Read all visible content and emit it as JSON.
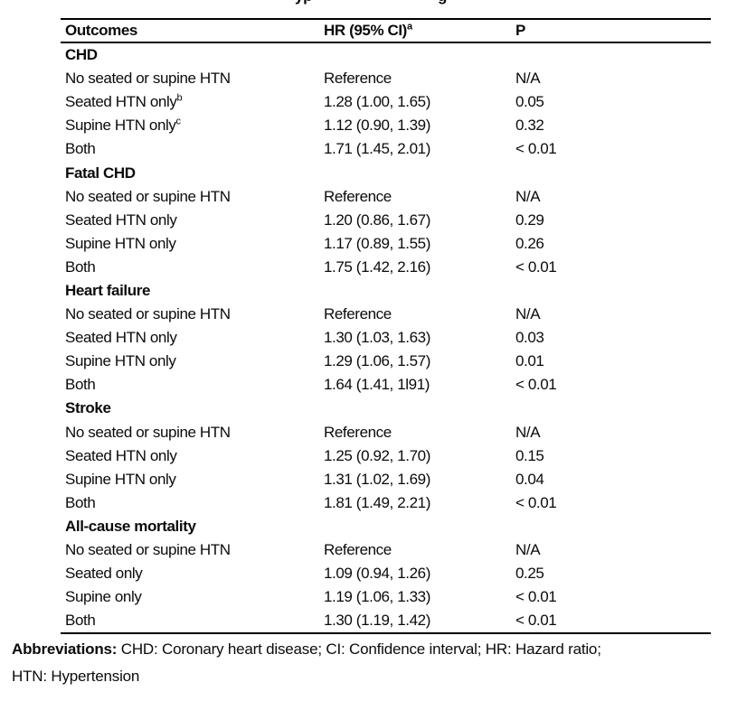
{
  "title_fragments": [
    "yp",
    "g"
  ],
  "table": {
    "columns": {
      "outcomes": "Outcomes",
      "hr": "HR (95% CI)",
      "hr_sup": "a",
      "p": "P"
    },
    "sections": [
      {
        "header": "CHD",
        "rows": [
          {
            "outcome": "No seated or supine HTN",
            "sup": "",
            "hr": "Reference",
            "p": "N/A"
          },
          {
            "outcome": "Seated HTN only",
            "sup": "b",
            "hr": "1.28 (1.00, 1.65)",
            "p": "0.05"
          },
          {
            "outcome": "Supine HTN only",
            "sup": "c",
            "hr": "1.12 (0.90, 1.39)",
            "p": "0.32"
          },
          {
            "outcome": "Both",
            "sup": "",
            "hr": "1.71 (1.45, 2.01)",
            "p": "< 0.01"
          }
        ]
      },
      {
        "header": "Fatal CHD",
        "rows": [
          {
            "outcome": "No seated or supine HTN",
            "sup": "",
            "hr": "Reference",
            "p": "N/A"
          },
          {
            "outcome": "Seated HTN only",
            "sup": "",
            "hr": "1.20 (0.86, 1.67)",
            "p": "0.29"
          },
          {
            "outcome": "Supine HTN only",
            "sup": "",
            "hr": "1.17 (0.89, 1.55)",
            "p": "0.26"
          },
          {
            "outcome": "Both",
            "sup": "",
            "hr": "1.75 (1.42, 2.16)",
            "p": "< 0.01"
          }
        ]
      },
      {
        "header": "Heart failure",
        "rows": [
          {
            "outcome": "No seated or supine HTN",
            "sup": "",
            "hr": "Reference",
            "p": "N/A"
          },
          {
            "outcome": "Seated HTN only",
            "sup": "",
            "hr": "1.30 (1.03, 1.63)",
            "p": "0.03"
          },
          {
            "outcome": "Supine HTN only",
            "sup": "",
            "hr": "1.29 (1.06, 1.57)",
            "p": "0.01"
          },
          {
            "outcome": "Both",
            "sup": "",
            "hr": "1.64 (1.41, 1l91)",
            "p": "< 0.01"
          }
        ]
      },
      {
        "header": "Stroke",
        "rows": [
          {
            "outcome": "No seated or supine HTN",
            "sup": "",
            "hr": "Reference",
            "p": "N/A"
          },
          {
            "outcome": "Seated HTN only",
            "sup": "",
            "hr": "1.25 (0.92, 1.70)",
            "p": "0.15"
          },
          {
            "outcome": "Supine HTN only",
            "sup": "",
            "hr": "1.31 (1.02, 1.69)",
            "p": "0.04"
          },
          {
            "outcome": "Both",
            "sup": "",
            "hr": "1.81 (1.49, 2.21)",
            "p": "< 0.01"
          }
        ]
      },
      {
        "header": "All-cause mortality",
        "rows": [
          {
            "outcome": "No seated or supine HTN",
            "sup": "",
            "hr": "Reference",
            "p": "N/A"
          },
          {
            "outcome": "Seated only",
            "sup": "",
            "hr": "1.09 (0.94, 1.26)",
            "p": "0.25"
          },
          {
            "outcome": "Supine only",
            "sup": "",
            "hr": "1.19 (1.06, 1.33)",
            "p": "< 0.01"
          },
          {
            "outcome": "Both",
            "sup": "",
            "hr": "1.30 (1.19, 1.42)",
            "p": "< 0.01"
          }
        ]
      }
    ]
  },
  "footnote": {
    "label": "Abbreviations:",
    "line1": " CHD: Coronary heart disease; CI: Confidence interval; HR: Hazard ratio;",
    "line2": "HTN: Hypertension"
  },
  "colors": {
    "text": "#0b0b0b",
    "rule": "#000000",
    "background": "#ffffff"
  }
}
